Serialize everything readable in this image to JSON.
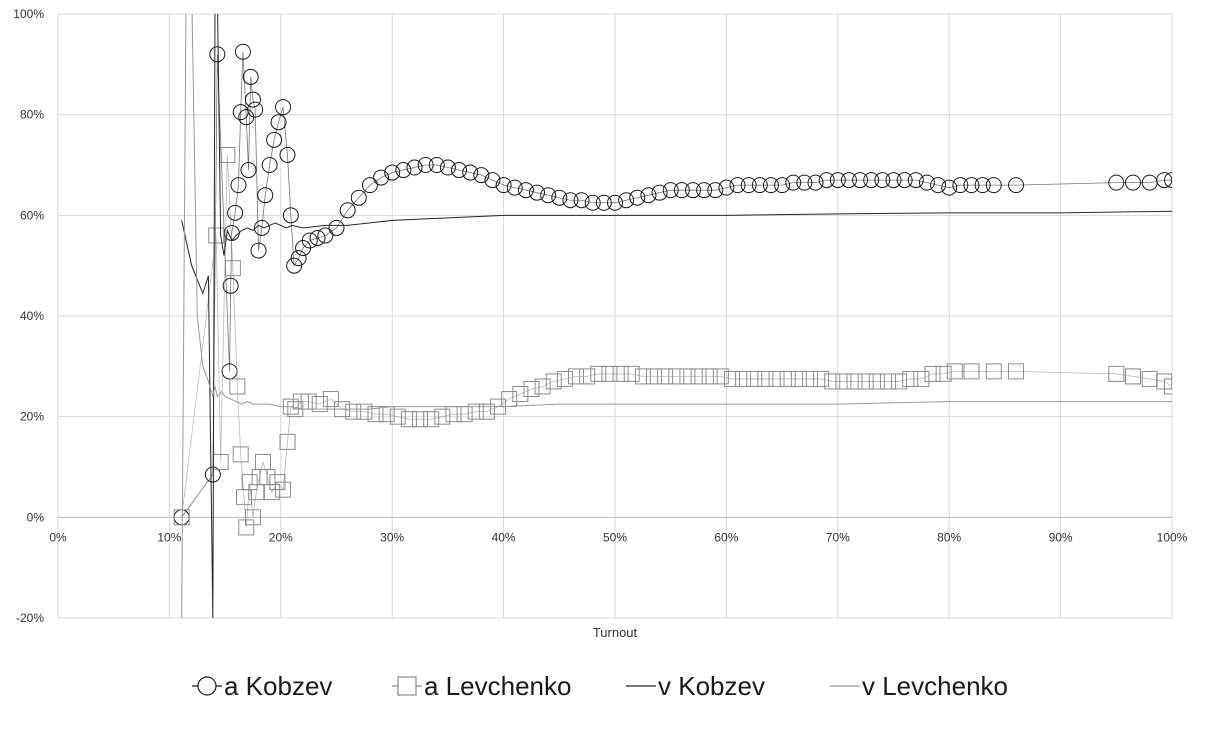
{
  "chart_data": {
    "type": "scatter",
    "xlabel": "Turnout",
    "ylabel": "",
    "xlim": [
      0,
      100
    ],
    "ylim": [
      -20,
      100
    ],
    "x_ticks": [
      0,
      10,
      20,
      30,
      40,
      50,
      60,
      70,
      80,
      90,
      100
    ],
    "y_ticks": [
      -20,
      0,
      20,
      40,
      60,
      80,
      100
    ],
    "x_tick_labels": [
      "0%",
      "10%",
      "20%",
      "30%",
      "40%",
      "50%",
      "60%",
      "70%",
      "80%",
      "90%",
      "100%"
    ],
    "y_tick_labels": [
      "-20%",
      "0%",
      "20%",
      "40%",
      "60%",
      "80%",
      "100%"
    ],
    "grid": true,
    "legend_position": "bottom",
    "legend": [
      "a Kobzev",
      "a Levchenko",
      "v Kobzev",
      "v Levchenko"
    ],
    "series": [
      {
        "name": "a Kobzev",
        "style": "markers",
        "marker": "circle",
        "color": "#1a1a1a",
        "x": [
          11.1,
          13.9,
          14.3,
          15.4,
          15.5,
          15.6,
          15.9,
          16.2,
          16.4,
          16.6,
          16.9,
          17.1,
          17.3,
          17.5,
          17.7,
          18.0,
          18.3,
          18.6,
          19.0,
          19.4,
          19.8,
          20.2,
          20.6,
          20.9,
          21.2,
          21.6,
          22.0,
          22.6,
          23.3,
          24.0,
          25.0,
          26.0,
          27.0,
          28.0,
          29.0,
          30.0,
          31.0,
          32.0,
          33.0,
          34.0,
          35.0,
          36.0,
          37.0,
          38.0,
          39.0,
          40.0,
          41.0,
          42.0,
          43.0,
          44.0,
          45.0,
          46.0,
          47.0,
          48.0,
          49.0,
          50.0,
          51.0,
          52.0,
          53.0,
          54.0,
          55.0,
          56.0,
          57.0,
          58.0,
          59.0,
          60.0,
          61.0,
          62.0,
          63.0,
          64.0,
          65.0,
          66.0,
          67.0,
          68.0,
          69.0,
          70.0,
          71.0,
          72.0,
          73.0,
          74.0,
          75.0,
          76.0,
          77.0,
          78.0,
          79.0,
          80.0,
          81.0,
          82.0,
          83.0,
          84.0,
          86.0,
          95.0,
          96.5,
          98.0,
          99.3,
          100.0
        ],
        "y": [
          0.0,
          8.5,
          92.0,
          29.0,
          46.0,
          56.5,
          60.5,
          66.0,
          80.5,
          92.5,
          79.5,
          69.0,
          87.5,
          83.0,
          81.0,
          53.0,
          57.5,
          64.0,
          70.0,
          75.0,
          78.5,
          81.5,
          72.0,
          60.0,
          50.0,
          51.5,
          53.5,
          55.0,
          55.5,
          56.0,
          57.5,
          61.0,
          63.5,
          66.0,
          67.5,
          68.5,
          69.0,
          69.5,
          70.0,
          70.0,
          69.5,
          69.0,
          68.5,
          68.0,
          67.0,
          66.0,
          65.5,
          65.0,
          64.5,
          64.0,
          63.5,
          63.0,
          63.0,
          62.5,
          62.5,
          62.5,
          63.0,
          63.5,
          64.0,
          64.5,
          65.0,
          65.0,
          65.0,
          65.0,
          65.0,
          65.5,
          66.0,
          66.0,
          66.0,
          66.0,
          66.0,
          66.5,
          66.5,
          66.5,
          67.0,
          67.0,
          67.0,
          67.0,
          67.0,
          67.0,
          67.0,
          67.0,
          67.0,
          66.5,
          66.0,
          65.5,
          66.0,
          66.0,
          66.0,
          66.0,
          66.0,
          66.5,
          66.5,
          66.5,
          67.0,
          67.0
        ]
      },
      {
        "name": "a Levchenko",
        "style": "markers",
        "marker": "square",
        "color": "#8c8c8c",
        "x": [
          11.1,
          14.2,
          14.6,
          15.2,
          15.7,
          16.1,
          16.4,
          16.7,
          16.9,
          17.2,
          17.5,
          17.8,
          18.1,
          18.4,
          18.8,
          19.2,
          19.7,
          20.2,
          20.6,
          20.9,
          21.3,
          21.8,
          22.5,
          23.5,
          24.5,
          25.5,
          26.5,
          27.5,
          28.5,
          29.5,
          30.5,
          31.5,
          32.5,
          33.5,
          34.5,
          35.5,
          36.5,
          37.5,
          38.5,
          39.5,
          40.5,
          41.5,
          42.5,
          43.5,
          44.5,
          45.5,
          46.5,
          47.5,
          48.5,
          49.5,
          50.5,
          51.5,
          52.5,
          53.5,
          54.5,
          55.5,
          56.5,
          57.5,
          58.5,
          59.5,
          60.5,
          61.5,
          62.5,
          63.5,
          64.5,
          65.5,
          66.5,
          67.5,
          68.5,
          69.5,
          70.5,
          71.5,
          72.5,
          73.5,
          74.5,
          75.5,
          76.5,
          77.5,
          78.5,
          79.5,
          80.5,
          82.0,
          84.0,
          86.0,
          95.0,
          96.5,
          98.0,
          99.3,
          100.0
        ],
        "y": [
          0.0,
          56.0,
          11.0,
          72.0,
          49.5,
          26.0,
          12.5,
          4.0,
          -2.0,
          7.0,
          0.0,
          5.0,
          8.0,
          11.0,
          8.0,
          5.0,
          7.0,
          5.5,
          15.0,
          22.0,
          21.5,
          23.0,
          23.0,
          22.5,
          23.5,
          21.5,
          21.0,
          21.0,
          20.5,
          20.5,
          20.0,
          19.5,
          19.5,
          19.5,
          20.0,
          20.5,
          20.5,
          21.0,
          21.0,
          22.0,
          23.5,
          24.5,
          25.5,
          26.0,
          27.0,
          27.5,
          28.0,
          28.0,
          28.5,
          28.5,
          28.5,
          28.5,
          28.0,
          28.0,
          28.0,
          28.0,
          28.0,
          28.0,
          28.0,
          28.0,
          27.5,
          27.5,
          27.5,
          27.5,
          27.5,
          27.5,
          27.5,
          27.5,
          27.5,
          27.0,
          27.0,
          27.0,
          27.0,
          27.0,
          27.0,
          27.0,
          27.5,
          27.5,
          28.5,
          28.5,
          29.0,
          29.0,
          29.0,
          29.0,
          28.5,
          28.0,
          27.5,
          27.0,
          26.0
        ]
      },
      {
        "name": "v Kobzev",
        "style": "line",
        "color": "#262626",
        "x": [
          11.1,
          12.0,
          13.0,
          13.5,
          13.9,
          14.1,
          14.3,
          14.6,
          14.9,
          15.2,
          15.6,
          16.0,
          16.5,
          17.0,
          17.5,
          18.0,
          18.5,
          19.0,
          19.5,
          20.0,
          20.5,
          21.0,
          22.0,
          24.0,
          26.0,
          28.0,
          30.0,
          35.0,
          40.0,
          45.0,
          50.0,
          60.0,
          70.0,
          80.0,
          90.0,
          100.0
        ],
        "y": [
          59.0,
          50.0,
          44.5,
          48.0,
          -20.0,
          105.0,
          105.0,
          56.0,
          52.0,
          57.0,
          55.0,
          56.0,
          57.0,
          57.5,
          57.0,
          58.0,
          57.5,
          58.0,
          58.5,
          58.0,
          57.5,
          58.0,
          57.5,
          58.0,
          58.0,
          58.5,
          59.0,
          59.5,
          60.0,
          60.0,
          60.0,
          60.0,
          60.3,
          60.5,
          60.5,
          60.8
        ]
      },
      {
        "name": "v Levchenko",
        "style": "line",
        "color": "#9a9a9a",
        "x": [
          11.1,
          11.5,
          12.0,
          12.5,
          13.0,
          13.5,
          13.9,
          14.1,
          14.3,
          14.7,
          15.0,
          15.5,
          16.0,
          16.5,
          17.0,
          17.5,
          18.0,
          19.0,
          20.0,
          21.0,
          22.0,
          24.0,
          26.0,
          28.0,
          30.0,
          35.0,
          40.0,
          45.0,
          50.0,
          60.0,
          70.0,
          80.0,
          90.0,
          100.0
        ],
        "y": [
          -20.0,
          105.0,
          105.0,
          40.0,
          30.0,
          27.0,
          24.0,
          26.0,
          24.0,
          25.0,
          24.0,
          23.5,
          23.0,
          22.5,
          23.0,
          22.5,
          22.5,
          22.5,
          22.0,
          22.0,
          21.5,
          21.5,
          21.5,
          21.5,
          22.0,
          22.0,
          22.0,
          22.5,
          22.5,
          22.5,
          22.5,
          23.0,
          23.0,
          23.0
        ]
      }
    ]
  }
}
